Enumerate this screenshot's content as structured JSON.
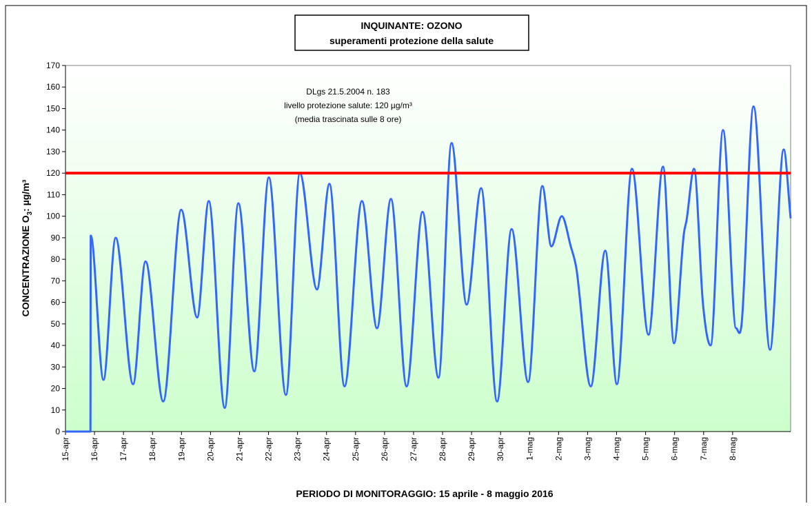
{
  "chart_data": {
    "type": "line",
    "title": [
      "INQUINANTE: OZONO",
      "superamenti protezione della salute"
    ],
    "annotation": [
      "DLgs 21.5.2004 n. 183",
      "livello protezione salute: 120 µg/m³",
      "(media trascinata sulle 8 ore)"
    ],
    "y_label": [
      "CONCENTRAZIONE O",
      "3",
      ": µg/m³"
    ],
    "x_label": "PERIODO DI MONITORAGGIO: 15 aprile - 8 maggio 2016",
    "threshold": 120,
    "threshold_color": "#ff0000",
    "xlim": [
      0,
      25
    ],
    "xticks": [
      {
        "value": 0,
        "label": "15-apr"
      },
      {
        "value": 1,
        "label": "16-apr"
      },
      {
        "value": 2,
        "label": "17-apr"
      },
      {
        "value": 3,
        "label": "18-apr"
      },
      {
        "value": 4,
        "label": "19-apr"
      },
      {
        "value": 5,
        "label": "20-apr"
      },
      {
        "value": 6,
        "label": "21-apr"
      },
      {
        "value": 7,
        "label": "22-apr"
      },
      {
        "value": 8,
        "label": "23-apr"
      },
      {
        "value": 9,
        "label": "24-apr"
      },
      {
        "value": 10,
        "label": "25-apr"
      },
      {
        "value": 11,
        "label": "26-apr"
      },
      {
        "value": 12,
        "label": "27-apr"
      },
      {
        "value": 13,
        "label": "28-apr"
      },
      {
        "value": 14,
        "label": "29-apr"
      },
      {
        "value": 15,
        "label": "30-apr"
      },
      {
        "value": 16,
        "label": "1-mag"
      },
      {
        "value": 17,
        "label": "2-mag"
      },
      {
        "value": 18,
        "label": "3-mag"
      },
      {
        "value": 19,
        "label": "4-mag"
      },
      {
        "value": 20,
        "label": "5-mag"
      },
      {
        "value": 21,
        "label": "6-mag"
      },
      {
        "value": 22,
        "label": "7-mag"
      },
      {
        "value": 23,
        "label": "8-mag"
      }
    ],
    "ylim": [
      0,
      170
    ],
    "yticks": [
      0,
      10,
      20,
      30,
      40,
      50,
      60,
      70,
      80,
      90,
      100,
      110,
      120,
      130,
      140,
      150,
      160,
      170
    ],
    "grid": false,
    "series": [
      {
        "color": "#3366ff",
        "x": [
          0,
          0.86,
          0.87,
          1.31,
          1.73,
          2.33,
          2.76,
          3.37,
          3.99,
          4.54,
          4.94,
          5.49,
          5.96,
          6.51,
          7.01,
          7.6,
          8.08,
          8.67,
          9.1,
          9.62,
          10.22,
          10.74,
          11.22,
          11.76,
          12.31,
          12.86,
          13.31,
          13.83,
          14.33,
          14.88,
          15.38,
          15.95,
          16.44,
          16.75,
          17.11,
          17.42,
          17.61,
          18.11,
          18.61,
          19.01,
          19.53,
          20.1,
          20.6,
          20.98,
          21.32,
          21.41,
          21.67,
          21.98,
          22.24,
          22.67,
          23.12,
          23.31,
          23.72,
          24.29,
          24.76,
          25
        ],
        "values": [
          0,
          0,
          91,
          24,
          90,
          22,
          79,
          14,
          103,
          53,
          107,
          11,
          106,
          28,
          118,
          17,
          120,
          66,
          115,
          21,
          107,
          48,
          108,
          21,
          102,
          25,
          134,
          59,
          113,
          14,
          94,
          23,
          114,
          86,
          100,
          86,
          76,
          21,
          84,
          22,
          122,
          45,
          123,
          41,
          92,
          98,
          122,
          59,
          40,
          140,
          48,
          50,
          151,
          38,
          131,
          99
        ]
      }
    ]
  }
}
